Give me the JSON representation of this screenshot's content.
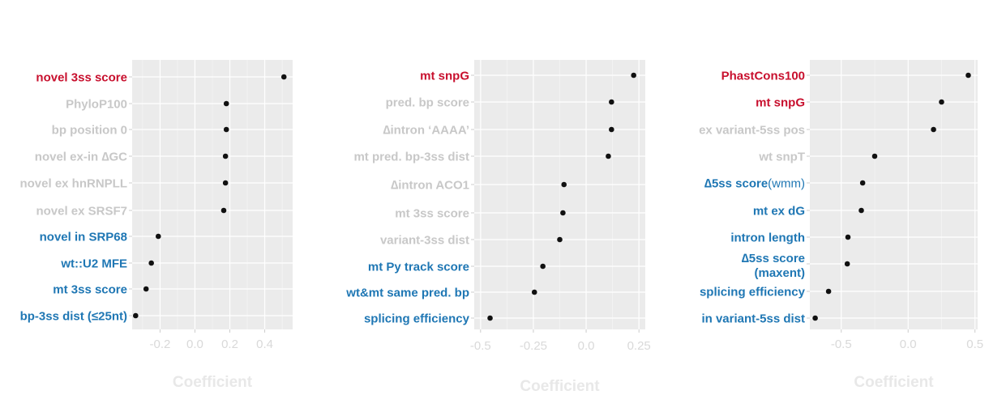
{
  "colors": {
    "red": "#c8102e",
    "grey": "#c8c8c8",
    "blue": "#1f77b4"
  },
  "chart_data": [
    {
      "type": "scatter",
      "xlabel": "Coefficient",
      "xlim": [
        -0.36,
        0.56
      ],
      "xticks": [
        -0.2,
        0.0,
        0.2,
        0.4
      ],
      "xtick_labels": [
        "-0.2",
        "0.0",
        "0.2",
        "0.4"
      ],
      "points": [
        {
          "label": "novel 3ss score",
          "value": 0.51,
          "color": "red"
        },
        {
          "label": "PhyloP100",
          "value": 0.18,
          "color": "grey"
        },
        {
          "label": "bp position 0",
          "value": 0.18,
          "color": "grey"
        },
        {
          "label": "novel ex-in ∆GC",
          "value": 0.175,
          "color": "grey"
        },
        {
          "label": "novel ex hnRNPLL",
          "value": 0.175,
          "color": "grey"
        },
        {
          "label": "novel ex SRSF7",
          "value": 0.165,
          "color": "grey"
        },
        {
          "label": "novel in SRP68",
          "value": -0.21,
          "color": "blue"
        },
        {
          "label": "wt::U2 MFE",
          "value": -0.25,
          "color": "blue"
        },
        {
          "label": "mt 3ss score",
          "value": -0.28,
          "color": "blue"
        },
        {
          "label": "bp-3ss dist (≤25nt)",
          "value": -0.34,
          "color": "blue"
        }
      ]
    },
    {
      "type": "scatter",
      "xlabel": "Coefficient",
      "xlim": [
        -0.53,
        0.28
      ],
      "xticks": [
        -0.5,
        -0.25,
        0.0,
        0.25
      ],
      "xtick_labels": [
        "-0.5",
        "-0.25",
        "0.0",
        "0.25"
      ],
      "points": [
        {
          "label": "mt snpG",
          "value": 0.225,
          "color": "red"
        },
        {
          "label": "pred. bp score",
          "value": 0.12,
          "color": "grey"
        },
        {
          "label": "∆intron ‘AAAA’",
          "value": 0.12,
          "color": "grey"
        },
        {
          "label": "mt pred. bp-3ss dist",
          "value": 0.105,
          "color": "grey"
        },
        {
          "label": "∆intron ACO1",
          "value": -0.105,
          "color": "grey"
        },
        {
          "label": "mt 3ss score",
          "value": -0.11,
          "color": "grey"
        },
        {
          "label": "variant-3ss dist",
          "value": -0.125,
          "color": "grey"
        },
        {
          "label": "mt Py track score",
          "value": -0.205,
          "color": "blue"
        },
        {
          "label": "wt&mt same pred. bp",
          "value": -0.245,
          "color": "blue"
        },
        {
          "label": "splicing efficiency",
          "value": -0.455,
          "color": "blue"
        }
      ]
    },
    {
      "type": "scatter",
      "xlabel": "Coefficient",
      "xlim": [
        -0.735,
        0.52
      ],
      "xticks": [
        -0.5,
        0.0,
        0.5
      ],
      "xtick_labels": [
        "-0.5",
        "0.0",
        "0.5"
      ],
      "points": [
        {
          "label": "PhastCons100",
          "value": 0.45,
          "color": "red"
        },
        {
          "label": "mt snpG",
          "value": 0.25,
          "color": "red"
        },
        {
          "label": "ex variant-5ss pos",
          "value": 0.19,
          "color": "grey"
        },
        {
          "label": "wt snpT",
          "value": -0.25,
          "color": "grey"
        },
        {
          "label": "∆5ss score",
          "label_suffix": "(wmm)",
          "value": -0.34,
          "color": "blue"
        },
        {
          "label": "mt ex dG",
          "value": -0.35,
          "color": "blue"
        },
        {
          "label": "intron length",
          "value": -0.45,
          "color": "blue"
        },
        {
          "label": "∆5ss score",
          "label_line2": "(maxent)",
          "value": -0.455,
          "color": "blue"
        },
        {
          "label": "splicing efficiency",
          "value": -0.595,
          "color": "blue"
        },
        {
          "label": "in variant-5ss dist",
          "value": -0.695,
          "color": "blue"
        }
      ]
    }
  ]
}
